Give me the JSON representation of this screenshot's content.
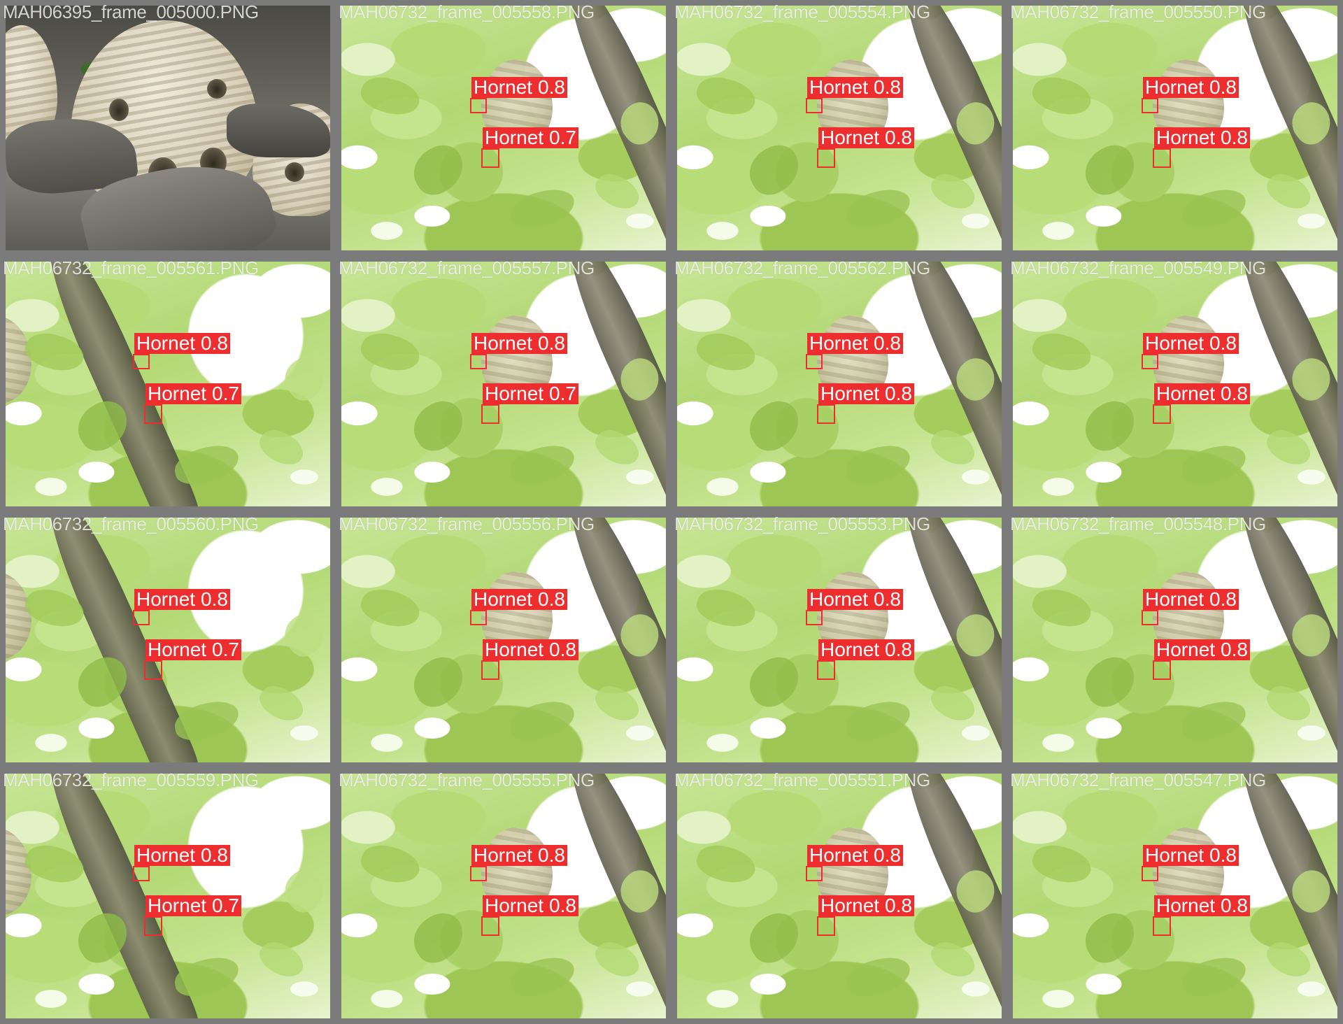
{
  "detection_label_color": "#ee2e2e",
  "tile_border_color": "#7b7b7b",
  "grid": {
    "rows": 4,
    "columns": 4
  },
  "tiles": [
    {
      "filename": "MAH06395_frame_005000.PNG",
      "scene": "nest-closeup",
      "detections": []
    },
    {
      "filename": "MAH06732_frame_005558.PNG",
      "scene": "foliage-right",
      "detections": [
        {
          "class": "Hornet",
          "confidence": "0.8"
        },
        {
          "class": "Hornet",
          "confidence": "0.7"
        }
      ]
    },
    {
      "filename": "MAH06732_frame_005554.PNG",
      "scene": "foliage-right",
      "detections": [
        {
          "class": "Hornet",
          "confidence": "0.8"
        },
        {
          "class": "Hornet",
          "confidence": "0.8"
        }
      ]
    },
    {
      "filename": "MAH06732_frame_005550.PNG",
      "scene": "foliage-right",
      "detections": [
        {
          "class": "Hornet",
          "confidence": "0.8"
        },
        {
          "class": "Hornet",
          "confidence": "0.8"
        }
      ]
    },
    {
      "filename": "MAH06732_frame_005561.PNG",
      "scene": "foliage-left",
      "detections": [
        {
          "class": "Hornet",
          "confidence": "0.8"
        },
        {
          "class": "Hornet",
          "confidence": "0.7"
        }
      ]
    },
    {
      "filename": "MAH06732_frame_005557.PNG",
      "scene": "foliage-right",
      "detections": [
        {
          "class": "Hornet",
          "confidence": "0.8"
        },
        {
          "class": "Hornet",
          "confidence": "0.7"
        }
      ]
    },
    {
      "filename": "MAH06732_frame_005562.PNG",
      "scene": "foliage-right",
      "detections": [
        {
          "class": "Hornet",
          "confidence": "0.8"
        },
        {
          "class": "Hornet",
          "confidence": "0.8"
        }
      ]
    },
    {
      "filename": "MAH06732_frame_005549.PNG",
      "scene": "foliage-right",
      "detections": [
        {
          "class": "Hornet",
          "confidence": "0.8"
        },
        {
          "class": "Hornet",
          "confidence": "0.8"
        }
      ]
    },
    {
      "filename": "MAH06732_frame_005560.PNG",
      "scene": "foliage-left",
      "detections": [
        {
          "class": "Hornet",
          "confidence": "0.8"
        },
        {
          "class": "Hornet",
          "confidence": "0.7"
        }
      ]
    },
    {
      "filename": "MAH06732_frame_005556.PNG",
      "scene": "foliage-right",
      "detections": [
        {
          "class": "Hornet",
          "confidence": "0.8"
        },
        {
          "class": "Hornet",
          "confidence": "0.8"
        }
      ]
    },
    {
      "filename": "MAH06732_frame_005553.PNG",
      "scene": "foliage-right",
      "detections": [
        {
          "class": "Hornet",
          "confidence": "0.8"
        },
        {
          "class": "Hornet",
          "confidence": "0.8"
        }
      ]
    },
    {
      "filename": "MAH06732_frame_005548.PNG",
      "scene": "foliage-right",
      "detections": [
        {
          "class": "Hornet",
          "confidence": "0.8"
        },
        {
          "class": "Hornet",
          "confidence": "0.8"
        }
      ]
    },
    {
      "filename": "MAH06732_frame_005559.PNG",
      "scene": "foliage-left",
      "detections": [
        {
          "class": "Hornet",
          "confidence": "0.8"
        },
        {
          "class": "Hornet",
          "confidence": "0.7"
        }
      ]
    },
    {
      "filename": "MAH06732_frame_005555.PNG",
      "scene": "foliage-right",
      "detections": [
        {
          "class": "Hornet",
          "confidence": "0.8"
        },
        {
          "class": "Hornet",
          "confidence": "0.8"
        }
      ]
    },
    {
      "filename": "MAH06732_frame_005551.PNG",
      "scene": "foliage-right",
      "detections": [
        {
          "class": "Hornet",
          "confidence": "0.8"
        },
        {
          "class": "Hornet",
          "confidence": "0.8"
        }
      ]
    },
    {
      "filename": "MAH06732_frame_005547.PNG",
      "scene": "foliage-right",
      "detections": [
        {
          "class": "Hornet",
          "confidence": "0.8"
        },
        {
          "class": "Hornet",
          "confidence": "0.8"
        }
      ]
    }
  ]
}
